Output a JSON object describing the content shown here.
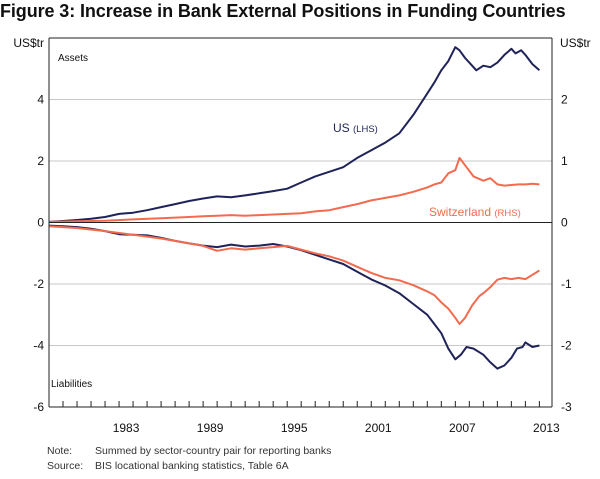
{
  "title": "Figure 3: Increase in Bank External Positions in Funding Countries",
  "notes": [
    {
      "key": "Note:",
      "text": "Summed by sector-country pair for reporting banks"
    },
    {
      "key": "Source:",
      "text": "BIS locational banking statistics, Table 6A"
    }
  ],
  "chart_data": {
    "type": "line",
    "title": "Figure 3: Increase in Bank External Positions in Funding Countries",
    "xlabel": "",
    "ylabel_left": "US$tr",
    "ylabel_right": "US$tr",
    "panel_labels": {
      "top": "Assets",
      "bottom": "Liabilities"
    },
    "x_range": [
      1978,
      2013.9
    ],
    "x_tick_labels": [
      "1983",
      "1989",
      "1995",
      "2001",
      "2007",
      "2013"
    ],
    "ylim_left": [
      -6,
      6
    ],
    "ylim_right": [
      -3,
      3
    ],
    "y_ticks_left": [
      "4",
      "2",
      "0",
      "-2",
      "-4",
      "-6"
    ],
    "y_ticks_right": [
      "2",
      "1",
      "0",
      "-1",
      "-2",
      "-3"
    ],
    "grid": true,
    "series": [
      {
        "name": "US (LHS)",
        "label_main": "US",
        "label_axis": "(LHS)",
        "axis": "left",
        "panel": "assets",
        "color": "#1f2358",
        "x": [
          1978,
          1979,
          1980,
          1981,
          1982,
          1983,
          1984,
          1985,
          1986,
          1987,
          1988,
          1989,
          1990,
          1991,
          1992,
          1993,
          1994,
          1995,
          1996,
          1997,
          1998,
          1999,
          2000,
          2001,
          2002,
          2003,
          2004,
          2005,
          2005.5,
          2006,
          2006.5,
          2007,
          2007.3,
          2007.7,
          2008,
          2008.5,
          2009,
          2009.5,
          2010,
          2010.5,
          2011,
          2011.3,
          2011.7,
          2012,
          2012.5,
          2013
        ],
        "values": [
          0.02,
          0.05,
          0.08,
          0.12,
          0.18,
          0.28,
          0.32,
          0.4,
          0.5,
          0.6,
          0.7,
          0.78,
          0.85,
          0.82,
          0.88,
          0.95,
          1.02,
          1.1,
          1.3,
          1.5,
          1.65,
          1.8,
          2.1,
          2.35,
          2.6,
          2.9,
          3.5,
          4.2,
          4.55,
          4.95,
          5.25,
          5.7,
          5.6,
          5.35,
          5.2,
          4.95,
          5.1,
          5.05,
          5.2,
          5.45,
          5.65,
          5.5,
          5.6,
          5.45,
          5.15,
          4.95
        ]
      },
      {
        "name": "Switzerland (RHS)",
        "label_main": "Switzerland",
        "label_axis": "(RHS)",
        "axis": "right",
        "panel": "assets",
        "color": "#f26b4f",
        "x": [
          1978,
          1980,
          1982,
          1984,
          1986,
          1988,
          1989,
          1990,
          1991,
          1992,
          1993,
          1994,
          1995,
          1996,
          1997,
          1998,
          1999,
          2000,
          2001,
          2002,
          2003,
          2004,
          2005,
          2005.5,
          2006,
          2006.5,
          2007,
          2007.3,
          2007.8,
          2008.3,
          2009,
          2009.5,
          2010,
          2010.5,
          2011,
          2011.5,
          2012,
          2012.5,
          2013
        ],
        "values": [
          0.01,
          0.02,
          0.03,
          0.05,
          0.07,
          0.09,
          0.1,
          0.11,
          0.12,
          0.11,
          0.12,
          0.13,
          0.14,
          0.15,
          0.18,
          0.2,
          0.25,
          0.3,
          0.36,
          0.4,
          0.44,
          0.5,
          0.57,
          0.62,
          0.65,
          0.8,
          0.85,
          1.05,
          0.9,
          0.75,
          0.68,
          0.72,
          0.62,
          0.6,
          0.61,
          0.62,
          0.62,
          0.63,
          0.62
        ]
      },
      {
        "name": "US liabilities (LHS)",
        "axis": "left",
        "panel": "liabilities",
        "color": "#1f2358",
        "x": [
          1978,
          1979,
          1980,
          1981,
          1982,
          1983,
          1984,
          1985,
          1986,
          1987,
          1988,
          1989,
          1990,
          1991,
          1992,
          1993,
          1994,
          1995,
          1996,
          1997,
          1998,
          1999,
          2000,
          2001,
          2002,
          2003,
          2004,
          2005,
          2005.5,
          2006,
          2006.5,
          2007,
          2007.4,
          2007.8,
          2008.3,
          2009,
          2009.5,
          2010,
          2010.5,
          2011,
          2011.4,
          2011.8,
          2012,
          2012.5,
          2013
        ],
        "values": [
          -0.1,
          -0.12,
          -0.15,
          -0.2,
          -0.28,
          -0.38,
          -0.4,
          -0.42,
          -0.5,
          -0.6,
          -0.68,
          -0.75,
          -0.8,
          -0.72,
          -0.78,
          -0.75,
          -0.7,
          -0.78,
          -0.9,
          -1.05,
          -1.2,
          -1.35,
          -1.6,
          -1.85,
          -2.05,
          -2.3,
          -2.65,
          -3.0,
          -3.3,
          -3.6,
          -4.1,
          -4.45,
          -4.3,
          -4.05,
          -4.1,
          -4.3,
          -4.55,
          -4.75,
          -4.65,
          -4.4,
          -4.1,
          -4.05,
          -3.9,
          -4.05,
          -4.0
        ]
      },
      {
        "name": "Switzerland liabilities (RHS)",
        "axis": "right",
        "panel": "liabilities",
        "color": "#f26b4f",
        "x": [
          1978,
          1980,
          1982,
          1984,
          1986,
          1988,
          1989,
          1990,
          1991,
          1992,
          1993,
          1994,
          1995,
          1996,
          1997,
          1998,
          1999,
          2000,
          2001,
          2002,
          2003,
          2004,
          2005,
          2005.5,
          2006,
          2006.5,
          2007,
          2007.3,
          2007.7,
          2008.2,
          2008.7,
          2009,
          2009.5,
          2010,
          2010.5,
          2011,
          2011.5,
          2012,
          2012.5,
          2013
        ],
        "values": [
          -0.06,
          -0.09,
          -0.14,
          -0.2,
          -0.26,
          -0.34,
          -0.38,
          -0.46,
          -0.42,
          -0.44,
          -0.42,
          -0.4,
          -0.38,
          -0.44,
          -0.5,
          -0.55,
          -0.62,
          -0.72,
          -0.82,
          -0.9,
          -0.94,
          -1.02,
          -1.12,
          -1.18,
          -1.3,
          -1.4,
          -1.55,
          -1.65,
          -1.55,
          -1.35,
          -1.2,
          -1.15,
          -1.05,
          -0.93,
          -0.9,
          -0.92,
          -0.9,
          -0.92,
          -0.85,
          -0.78
        ]
      }
    ],
    "annotations": [
      "US (LHS)",
      "Switzerland (RHS)"
    ]
  }
}
